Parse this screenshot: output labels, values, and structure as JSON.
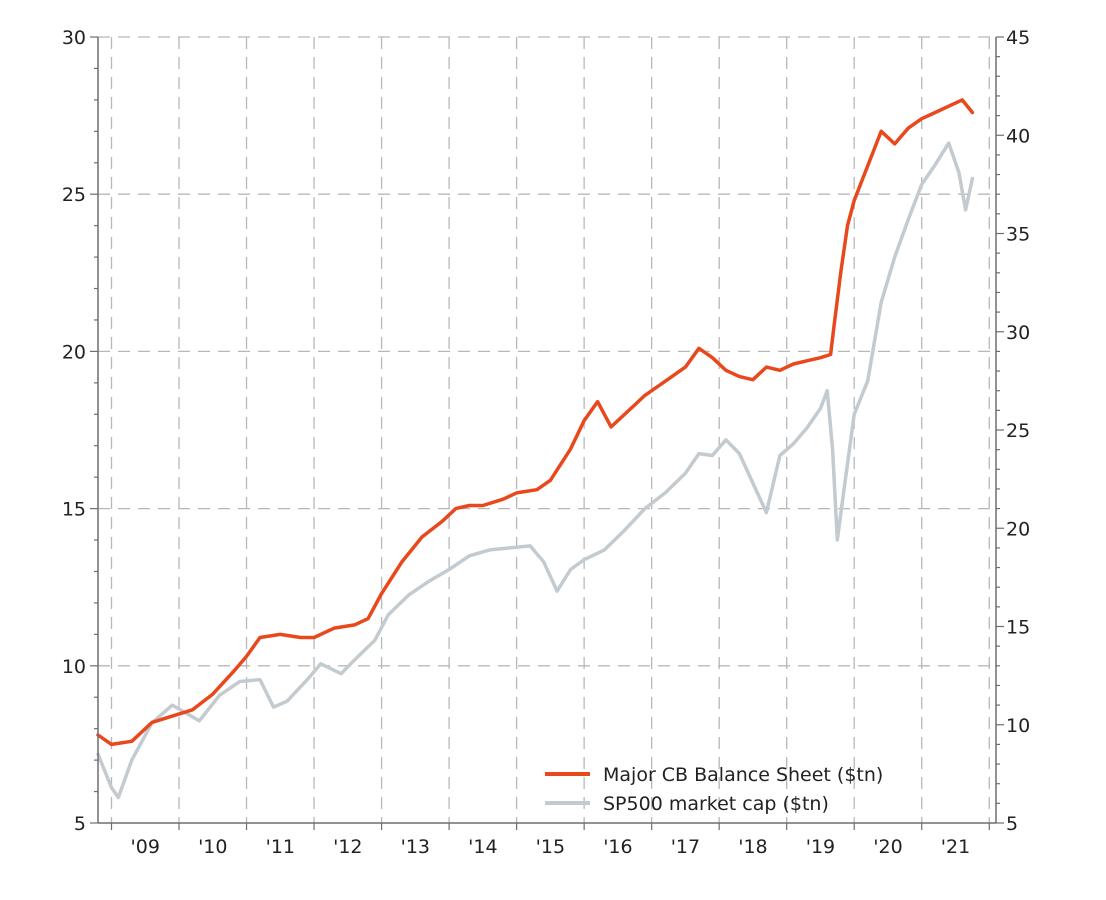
{
  "chart_data": {
    "type": "line",
    "title": "",
    "xlabel": "",
    "ylabel": "",
    "y2label": "",
    "x_range": [
      2008.8,
      2022.1
    ],
    "xticks": [
      2009,
      2010,
      2011,
      2012,
      2013,
      2014,
      2015,
      2016,
      2017,
      2018,
      2019,
      2020,
      2021
    ],
    "xtick_labels": [
      "'09",
      "'10",
      "'11",
      "'12",
      "'13",
      "'14",
      "'15",
      "'16",
      "'17",
      "'18",
      "'19",
      "'20",
      "'21"
    ],
    "y_left": {
      "range": [
        5,
        30
      ],
      "ticks": [
        5,
        10,
        15,
        20,
        25,
        30
      ]
    },
    "y_right": {
      "range": [
        5,
        45
      ],
      "ticks": [
        5,
        10,
        15,
        20,
        25,
        30,
        35,
        40,
        45
      ]
    },
    "grid": true,
    "legend_position": "bottom-right",
    "series": [
      {
        "name": "Major CB Balance Sheet ($tn)",
        "axis": "left",
        "color": "#e8481c",
        "points": [
          [
            2008.8,
            7.8
          ],
          [
            2009.0,
            7.5
          ],
          [
            2009.3,
            7.6
          ],
          [
            2009.6,
            8.2
          ],
          [
            2009.9,
            8.4
          ],
          [
            2010.2,
            8.6
          ],
          [
            2010.5,
            9.1
          ],
          [
            2010.8,
            9.8
          ],
          [
            2011.0,
            10.3
          ],
          [
            2011.2,
            10.9
          ],
          [
            2011.5,
            11.0
          ],
          [
            2011.8,
            10.9
          ],
          [
            2012.0,
            10.9
          ],
          [
            2012.3,
            11.2
          ],
          [
            2012.6,
            11.3
          ],
          [
            2012.8,
            11.5
          ],
          [
            2013.0,
            12.3
          ],
          [
            2013.3,
            13.3
          ],
          [
            2013.6,
            14.1
          ],
          [
            2013.9,
            14.6
          ],
          [
            2014.1,
            15.0
          ],
          [
            2014.3,
            15.1
          ],
          [
            2014.5,
            15.1
          ],
          [
            2014.8,
            15.3
          ],
          [
            2015.0,
            15.5
          ],
          [
            2015.3,
            15.6
          ],
          [
            2015.5,
            15.9
          ],
          [
            2015.8,
            16.9
          ],
          [
            2016.0,
            17.8
          ],
          [
            2016.2,
            18.4
          ],
          [
            2016.4,
            17.6
          ],
          [
            2016.7,
            18.2
          ],
          [
            2016.9,
            18.6
          ],
          [
            2017.1,
            18.9
          ],
          [
            2017.3,
            19.2
          ],
          [
            2017.5,
            19.5
          ],
          [
            2017.7,
            20.1
          ],
          [
            2017.9,
            19.8
          ],
          [
            2018.1,
            19.4
          ],
          [
            2018.3,
            19.2
          ],
          [
            2018.5,
            19.1
          ],
          [
            2018.7,
            19.5
          ],
          [
            2018.9,
            19.4
          ],
          [
            2019.1,
            19.6
          ],
          [
            2019.3,
            19.7
          ],
          [
            2019.5,
            19.8
          ],
          [
            2019.65,
            19.9
          ],
          [
            2019.7,
            20.8
          ],
          [
            2019.8,
            22.5
          ],
          [
            2019.9,
            24.0
          ],
          [
            2020.0,
            24.8
          ],
          [
            2020.2,
            25.9
          ],
          [
            2020.4,
            27.0
          ],
          [
            2020.6,
            26.6
          ],
          [
            2020.8,
            27.1
          ],
          [
            2021.0,
            27.4
          ],
          [
            2021.2,
            27.6
          ],
          [
            2021.4,
            27.8
          ],
          [
            2021.6,
            28.0
          ],
          [
            2021.75,
            27.6
          ]
        ]
      },
      {
        "name": "SP500 market cap ($tn)",
        "axis": "right",
        "color": "#c3cbd0",
        "points": [
          [
            2008.8,
            8.5
          ],
          [
            2009.0,
            6.8
          ],
          [
            2009.1,
            6.3
          ],
          [
            2009.3,
            8.2
          ],
          [
            2009.6,
            10.1
          ],
          [
            2009.9,
            11.0
          ],
          [
            2010.1,
            10.6
          ],
          [
            2010.3,
            10.2
          ],
          [
            2010.6,
            11.5
          ],
          [
            2010.9,
            12.2
          ],
          [
            2011.2,
            12.3
          ],
          [
            2011.4,
            10.9
          ],
          [
            2011.6,
            11.2
          ],
          [
            2011.9,
            12.3
          ],
          [
            2012.1,
            13.1
          ],
          [
            2012.4,
            12.6
          ],
          [
            2012.6,
            13.3
          ],
          [
            2012.9,
            14.3
          ],
          [
            2013.1,
            15.6
          ],
          [
            2013.4,
            16.6
          ],
          [
            2013.7,
            17.3
          ],
          [
            2014.0,
            17.9
          ],
          [
            2014.3,
            18.6
          ],
          [
            2014.6,
            18.9
          ],
          [
            2014.9,
            19.0
          ],
          [
            2015.2,
            19.1
          ],
          [
            2015.4,
            18.3
          ],
          [
            2015.6,
            16.8
          ],
          [
            2015.8,
            17.9
          ],
          [
            2016.0,
            18.4
          ],
          [
            2016.3,
            18.9
          ],
          [
            2016.6,
            19.9
          ],
          [
            2016.9,
            21.0
          ],
          [
            2017.2,
            21.8
          ],
          [
            2017.5,
            22.8
          ],
          [
            2017.7,
            23.8
          ],
          [
            2017.9,
            23.7
          ],
          [
            2018.1,
            24.5
          ],
          [
            2018.3,
            23.8
          ],
          [
            2018.5,
            22.3
          ],
          [
            2018.7,
            20.8
          ],
          [
            2018.9,
            23.7
          ],
          [
            2019.1,
            24.3
          ],
          [
            2019.3,
            25.1
          ],
          [
            2019.5,
            26.1
          ],
          [
            2019.6,
            27.0
          ],
          [
            2019.68,
            24.0
          ],
          [
            2019.75,
            19.4
          ],
          [
            2019.85,
            22.0
          ],
          [
            2020.0,
            25.8
          ],
          [
            2020.2,
            27.5
          ],
          [
            2020.4,
            31.5
          ],
          [
            2020.6,
            33.8
          ],
          [
            2020.8,
            35.7
          ],
          [
            2021.0,
            37.5
          ],
          [
            2021.2,
            38.5
          ],
          [
            2021.4,
            39.6
          ],
          [
            2021.55,
            38.1
          ],
          [
            2021.65,
            36.2
          ],
          [
            2021.75,
            37.8
          ]
        ]
      }
    ]
  },
  "colors": {
    "grid": "#b8b8b8",
    "axis": "#6e6e6e",
    "tick_text": "#222222"
  }
}
